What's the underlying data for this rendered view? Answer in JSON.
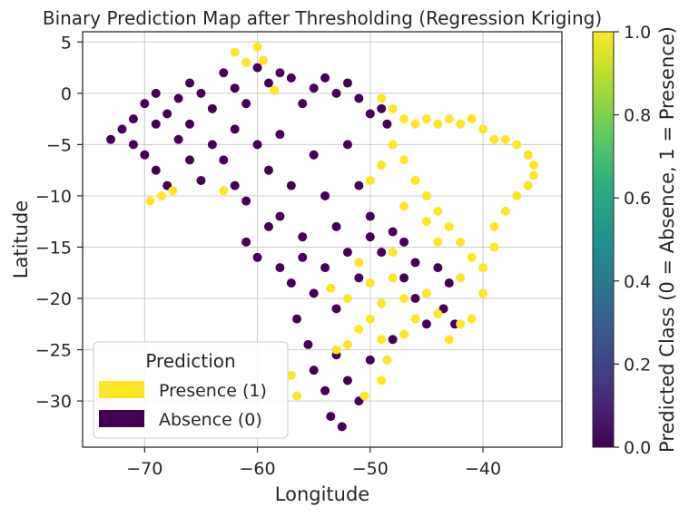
{
  "chart_data": {
    "type": "scatter",
    "title": "Binary Prediction Map after Thresholding (Regression Kriging)",
    "xlabel": "Longitude",
    "ylabel": "Latitude",
    "xlim": [
      -75.5,
      -33.0
    ],
    "ylim": [
      -34.5,
      6.0
    ],
    "xticks": [
      -70,
      -60,
      -50,
      -40
    ],
    "yticks": [
      5,
      0,
      -5,
      -10,
      -15,
      -20,
      -25,
      -30
    ],
    "grid": true,
    "colors": {
      "presence": "#fde725",
      "absence": "#440154"
    },
    "legend": {
      "title": "Prediction",
      "placement": "lower-left",
      "entries": [
        {
          "label": "Presence (1)",
          "color": "#fde725"
        },
        {
          "label": "Absence (0)",
          "color": "#440154"
        }
      ]
    },
    "colorbar": {
      "label": "Predicted Class (0 = Absence, 1 = Presence)",
      "colormap": "viridis",
      "range": [
        0.0,
        1.0
      ],
      "ticks": [
        "0.0",
        "0.2",
        "0.4",
        "0.6",
        "0.8",
        "1.0"
      ]
    },
    "series": [
      {
        "name": "Absence (0)",
        "class": 0,
        "points": [
          [
            -73,
            -4.5
          ],
          [
            -72,
            -3.5
          ],
          [
            -71,
            -2.5
          ],
          [
            -71,
            -5
          ],
          [
            -70,
            -1
          ],
          [
            -70,
            -6
          ],
          [
            -69,
            0
          ],
          [
            -69,
            -3
          ],
          [
            -69,
            -7.5
          ],
          [
            -68,
            -2
          ],
          [
            -68,
            -9
          ],
          [
            -67,
            -0.5
          ],
          [
            -67,
            -4.5
          ],
          [
            -66,
            1
          ],
          [
            -66,
            -3
          ],
          [
            -66,
            -6.5
          ],
          [
            -65,
            0
          ],
          [
            -65,
            -8.5
          ],
          [
            -64,
            -1.5
          ],
          [
            -64,
            -5
          ],
          [
            -63,
            2
          ],
          [
            -63,
            -6.5
          ],
          [
            -62,
            0.5
          ],
          [
            -62,
            -3.5
          ],
          [
            -62,
            -9
          ],
          [
            -61,
            -1
          ],
          [
            -61,
            -10.5
          ],
          [
            -60,
            2.5
          ],
          [
            -60,
            -5
          ],
          [
            -59,
            1
          ],
          [
            -59,
            -7.5
          ],
          [
            -58,
            2
          ],
          [
            -58,
            -4
          ],
          [
            -58,
            -12
          ],
          [
            -57,
            1.5
          ],
          [
            -57,
            -9
          ],
          [
            -56,
            -1
          ],
          [
            -56,
            -14
          ],
          [
            -55,
            0.5
          ],
          [
            -55,
            -6
          ],
          [
            -54,
            1.5
          ],
          [
            -54,
            -10
          ],
          [
            -53,
            0
          ],
          [
            -53,
            -13
          ],
          [
            -52,
            1
          ],
          [
            -52,
            -5
          ],
          [
            -51,
            -0.5
          ],
          [
            -51,
            -9
          ],
          [
            -50,
            -2
          ],
          [
            -50,
            -12
          ],
          [
            -49,
            -1.5
          ],
          [
            -48.5,
            -3
          ],
          [
            -61,
            -14.5
          ],
          [
            -60,
            -16
          ],
          [
            -59,
            -13
          ],
          [
            -58,
            -17
          ],
          [
            -57,
            -18.5
          ],
          [
            -56,
            -16
          ],
          [
            -55,
            -19.5
          ],
          [
            -54,
            -17
          ],
          [
            -53,
            -21
          ],
          [
            -52,
            -15.5
          ],
          [
            -51,
            -18
          ],
          [
            -50,
            -14
          ],
          [
            -49,
            -15.5
          ],
          [
            -48,
            -13.5
          ],
          [
            -47,
            -14.5
          ],
          [
            -46,
            -16.5
          ],
          [
            -56.5,
            -22
          ],
          [
            -55.5,
            -24.5
          ],
          [
            -55,
            -27
          ],
          [
            -54,
            -29
          ],
          [
            -53.5,
            -31.5
          ],
          [
            -53,
            -25.5
          ],
          [
            -52,
            -28
          ],
          [
            -51,
            -30
          ],
          [
            -52.5,
            -32.5
          ],
          [
            -50,
            -26
          ],
          [
            -48,
            -24
          ],
          [
            -45,
            -22.5
          ],
          [
            -43.5,
            -21
          ],
          [
            -42.5,
            -22.5
          ],
          [
            -46,
            -20
          ],
          [
            -43,
            -18.5
          ],
          [
            -47,
            -18
          ],
          [
            -44,
            -17
          ]
        ]
      },
      {
        "name": "Presence (1)",
        "class": 1,
        "points": [
          [
            -62,
            4
          ],
          [
            -61,
            3
          ],
          [
            -60,
            4.5
          ],
          [
            -59.5,
            3.2
          ],
          [
            -58.5,
            0.3
          ],
          [
            -69.5,
            -10.5
          ],
          [
            -68.5,
            -10
          ],
          [
            -67.5,
            -9.5
          ],
          [
            -63,
            -9.5
          ],
          [
            -49,
            -0.5
          ],
          [
            -48,
            -1.5
          ],
          [
            -47,
            -2.5
          ],
          [
            -46,
            -3
          ],
          [
            -45,
            -2.5
          ],
          [
            -44,
            -3
          ],
          [
            -43,
            -2.5
          ],
          [
            -42,
            -3
          ],
          [
            -41,
            -2.5
          ],
          [
            -40,
            -3.5
          ],
          [
            -39,
            -4.5
          ],
          [
            -38,
            -4.5
          ],
          [
            -37,
            -5
          ],
          [
            -36,
            -6
          ],
          [
            -35.5,
            -7
          ],
          [
            -35.5,
            -8
          ],
          [
            -36,
            -9
          ],
          [
            -37,
            -10
          ],
          [
            -38,
            -11.5
          ],
          [
            -39,
            -13
          ],
          [
            -39,
            -15
          ],
          [
            -40,
            -17
          ],
          [
            -40,
            -19.5
          ],
          [
            -41,
            -22
          ],
          [
            -42,
            -22.5
          ],
          [
            -48,
            -5
          ],
          [
            -49,
            -7
          ],
          [
            -50,
            -8.5
          ],
          [
            -47,
            -6.5
          ],
          [
            -46,
            -8.5
          ],
          [
            -45,
            -10
          ],
          [
            -44,
            -11.5
          ],
          [
            -43,
            -13
          ],
          [
            -42,
            -14.5
          ],
          [
            -41,
            -16
          ],
          [
            -47,
            -11
          ],
          [
            -45,
            -12.5
          ],
          [
            -44,
            -14.5
          ],
          [
            -42,
            -18
          ],
          [
            -48,
            -18
          ],
          [
            -47,
            -20
          ],
          [
            -46,
            -22
          ],
          [
            -45,
            -19.5
          ],
          [
            -44,
            -21.5
          ],
          [
            -43,
            -24
          ],
          [
            -49,
            -20.5
          ],
          [
            -50,
            -22
          ],
          [
            -51,
            -23
          ],
          [
            -52,
            -24.5
          ],
          [
            -53,
            -25
          ],
          [
            -49,
            -24
          ],
          [
            -47,
            -23.5
          ],
          [
            -50,
            -18.5
          ],
          [
            -52,
            -20
          ],
          [
            -53.5,
            -19
          ],
          [
            -51,
            -16.5
          ],
          [
            -48,
            -15.5
          ],
          [
            -49,
            -28
          ],
          [
            -50.5,
            -29.5
          ],
          [
            -48.5,
            -26
          ],
          [
            -57,
            -27.5
          ],
          [
            -56.5,
            -29.5
          ]
        ]
      }
    ]
  }
}
